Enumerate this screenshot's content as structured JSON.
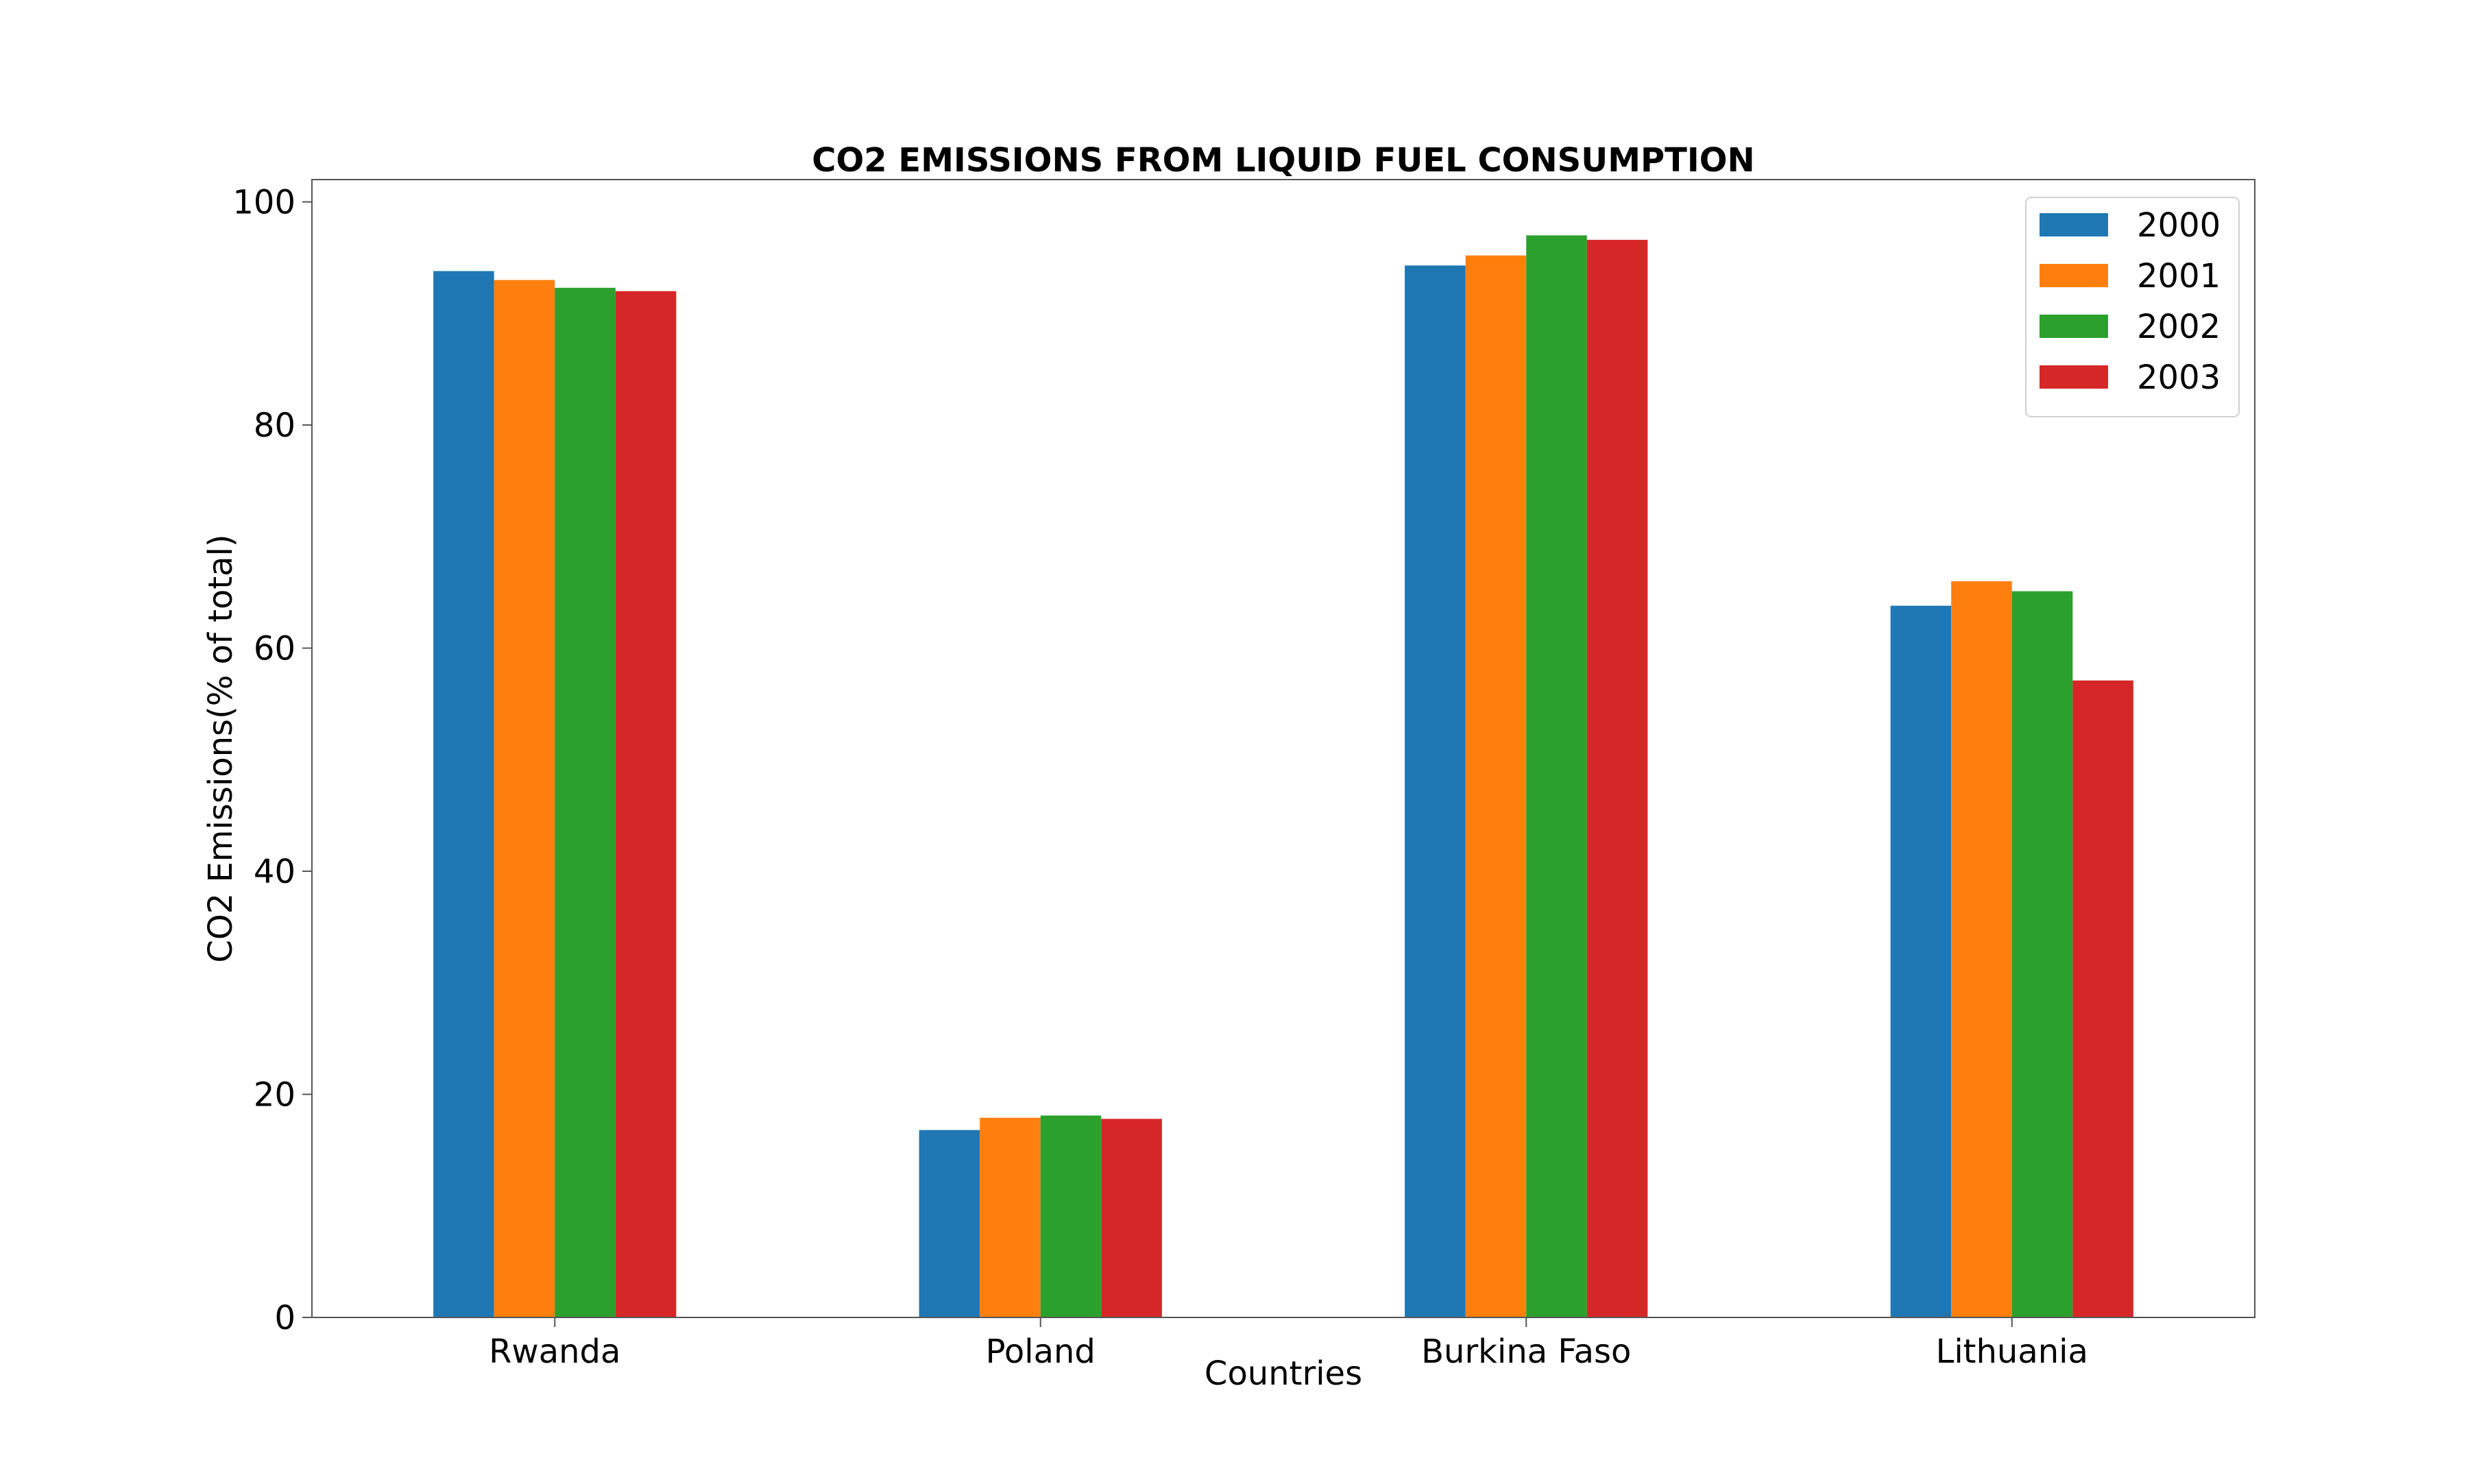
{
  "chart_data": {
    "type": "bar",
    "title": "CO2 EMISSIONS FROM LIQUID FUEL CONSUMPTION",
    "xlabel": "Countries",
    "ylabel": "CO2 Emissions(% of total)",
    "categories": [
      "Rwanda",
      "Poland",
      "Burkina Faso",
      "Lithuania"
    ],
    "series": [
      {
        "name": "2000",
        "color": "#1f77b4",
        "values": [
          93.8,
          16.8,
          94.3,
          63.8
        ]
      },
      {
        "name": "2001",
        "color": "#ff7f0e",
        "values": [
          93.0,
          17.9,
          95.2,
          66.0
        ]
      },
      {
        "name": "2002",
        "color": "#2ca02c",
        "values": [
          92.3,
          18.1,
          97.0,
          65.1
        ]
      },
      {
        "name": "2003",
        "color": "#d62728",
        "values": [
          92.0,
          17.8,
          96.6,
          57.1
        ]
      }
    ],
    "ylim": [
      0,
      102
    ],
    "yticks": [
      0,
      20,
      40,
      60,
      80,
      100
    ],
    "grid": false,
    "legend_position": "top-right"
  }
}
